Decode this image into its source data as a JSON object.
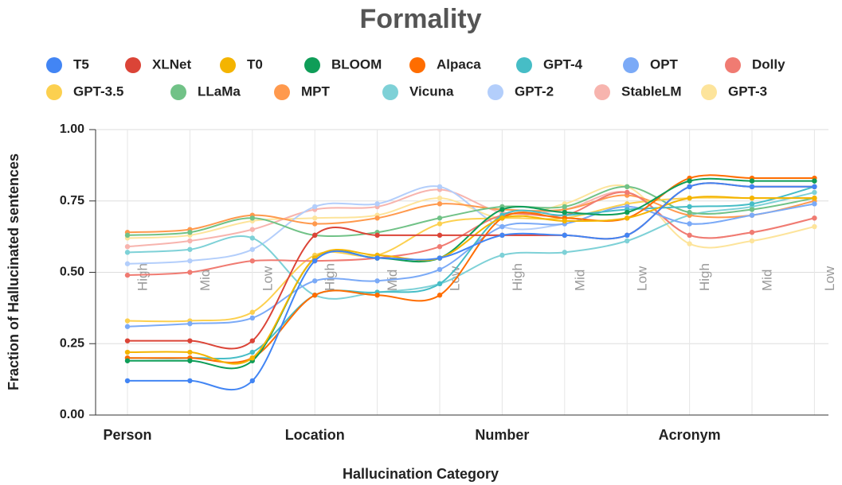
{
  "chart_data": {
    "type": "line",
    "title": "Formality",
    "x_label": "Hallucination Category",
    "y_label": "Fraction of Hallucinated sentences",
    "groups": [
      "Person",
      "Location",
      "Number",
      "Acronym"
    ],
    "categories": [
      "High",
      "Mid",
      "Low",
      "High",
      "Mid",
      "Low",
      "High",
      "Mid",
      "Low",
      "High",
      "Mid",
      "Low"
    ],
    "ylim": [
      0,
      1
    ],
    "yticks": [
      {
        "value": 0,
        "label": "0.00"
      },
      {
        "value": 0.25,
        "label": "0.25"
      },
      {
        "value": 0.5,
        "label": "0.50"
      },
      {
        "value": 0.75,
        "label": "0.75"
      },
      {
        "value": 1,
        "label": "1.00"
      }
    ],
    "grid": true,
    "series": [
      {
        "name": "T5",
        "color": "#4285f4",
        "values": [
          0.12,
          0.12,
          0.12,
          0.54,
          0.55,
          0.55,
          0.63,
          0.63,
          0.63,
          0.8,
          0.8,
          0.8
        ]
      },
      {
        "name": "XLNet",
        "color": "#db4437",
        "values": [
          0.26,
          0.26,
          0.26,
          0.63,
          0.63,
          0.63,
          0.63,
          0.63,
          0.63,
          0.8,
          0.8,
          0.8
        ]
      },
      {
        "name": "T0",
        "color": "#f4b400",
        "values": [
          0.22,
          0.22,
          0.2,
          0.55,
          0.56,
          0.55,
          0.69,
          0.68,
          0.69,
          0.76,
          0.76,
          0.76
        ]
      },
      {
        "name": "BLOOM",
        "color": "#0f9d58",
        "values": [
          0.19,
          0.19,
          0.19,
          0.55,
          0.55,
          0.55,
          0.72,
          0.71,
          0.71,
          0.82,
          0.82,
          0.82
        ]
      },
      {
        "name": "Alpaca",
        "color": "#ff6d00",
        "values": [
          0.2,
          0.2,
          0.2,
          0.42,
          0.42,
          0.42,
          0.69,
          0.69,
          0.69,
          0.83,
          0.83,
          0.83
        ]
      },
      {
        "name": "GPT-4",
        "color": "#46bdc6",
        "values": [
          0.2,
          0.2,
          0.22,
          0.42,
          0.43,
          0.46,
          0.7,
          0.7,
          0.72,
          0.73,
          0.74,
          0.8
        ]
      },
      {
        "name": "OPT",
        "color": "#7baaf7",
        "values": [
          0.31,
          0.32,
          0.34,
          0.47,
          0.47,
          0.51,
          0.66,
          0.67,
          0.73,
          0.67,
          0.7,
          0.74
        ]
      },
      {
        "name": "Dolly",
        "color": "#f07b72",
        "values": [
          0.49,
          0.5,
          0.54,
          0.54,
          0.55,
          0.59,
          0.7,
          0.7,
          0.78,
          0.63,
          0.64,
          0.69
        ]
      },
      {
        "name": "GPT-3.5",
        "color": "#fcd04f",
        "values": [
          0.33,
          0.33,
          0.36,
          0.56,
          0.56,
          0.67,
          0.69,
          0.69,
          0.74,
          0.76,
          0.76,
          0.76
        ]
      },
      {
        "name": "LLaMa",
        "color": "#71c287",
        "values": [
          0.63,
          0.64,
          0.69,
          0.63,
          0.64,
          0.69,
          0.73,
          0.73,
          0.8,
          0.71,
          0.72,
          0.76
        ]
      },
      {
        "name": "MPT",
        "color": "#ff994d",
        "values": [
          0.64,
          0.65,
          0.7,
          0.67,
          0.69,
          0.74,
          0.72,
          0.72,
          0.77,
          0.7,
          0.7,
          0.75
        ]
      },
      {
        "name": "Vicuna",
        "color": "#7ed1d7",
        "values": [
          0.57,
          0.58,
          0.62,
          0.42,
          0.43,
          0.46,
          0.56,
          0.57,
          0.61,
          0.7,
          0.73,
          0.78
        ]
      },
      {
        "name": "GPT-2",
        "color": "#b3cefb",
        "values": [
          0.53,
          0.54,
          0.58,
          0.73,
          0.74,
          0.8,
          0.66,
          0.67,
          0.73,
          0.67,
          0.7,
          0.74
        ]
      },
      {
        "name": "StableLM",
        "color": "#f7b4ae",
        "values": [
          0.59,
          0.61,
          0.65,
          0.72,
          0.73,
          0.79,
          0.71,
          0.72,
          0.78,
          0.63,
          0.64,
          0.69
        ]
      },
      {
        "name": "GPT-3",
        "color": "#fde49b",
        "values": [
          0.62,
          0.63,
          0.68,
          0.69,
          0.7,
          0.76,
          0.69,
          0.74,
          0.8,
          0.6,
          0.61,
          0.66
        ]
      }
    ]
  }
}
